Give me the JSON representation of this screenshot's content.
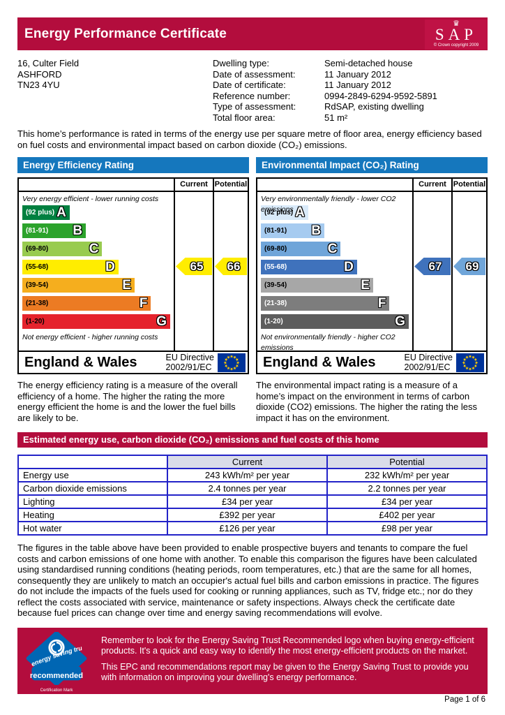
{
  "page": {
    "title": "Energy Performance Certificate",
    "page_number": "Page 1 of 6"
  },
  "sap": {
    "text": "SAP",
    "crown": "♛",
    "copyright": "© Crown copyright 2009"
  },
  "property": {
    "address_lines": [
      "16, Culter Field",
      "ASHFORD",
      "TN23 4YU"
    ],
    "details": [
      {
        "label": "Dwelling type:",
        "value": "Semi-detached house"
      },
      {
        "label": "Date of assessment:",
        "value": "11 January 2012"
      },
      {
        "label": "Date of certificate:",
        "value": "11 January 2012"
      },
      {
        "label": "Reference number:",
        "value": "0994-2849-6294-9592-5891"
      },
      {
        "label": "Type of assessment:",
        "value": "RdSAP, existing dwelling"
      },
      {
        "label": "Total floor area:",
        "value": "51 m²"
      }
    ]
  },
  "intro": {
    "text": "This home’s performance is rated in terms of the energy use per square metre of floor area, energy efficiency based on fuel costs and environmental impact based on carbon dioxide (CO₂) emissions."
  },
  "energy_chart": {
    "title": "Energy Efficiency Rating",
    "columns": {
      "current": "Current",
      "potential": "Potential"
    },
    "top_caption": "Very energy efficient - lower running costs",
    "bottom_caption": "Not energy efficient - higher running costs",
    "bands": [
      {
        "range": "(92 plus)",
        "letter": "A",
        "color": "#008040",
        "label_color": "#ffffff",
        "width_pct": 32
      },
      {
        "range": "(81-91)",
        "letter": "B",
        "color": "#2ca32c",
        "label_color": "#ffffff",
        "width_pct": 43
      },
      {
        "range": "(69-80)",
        "letter": "C",
        "color": "#98cb4f",
        "label_color": "#000000",
        "width_pct": 54
      },
      {
        "range": "(55-68)",
        "letter": "D",
        "color": "#ffed00",
        "label_color": "#000000",
        "width_pct": 65
      },
      {
        "range": "(39-54)",
        "letter": "E",
        "color": "#f5ae1e",
        "label_color": "#000000",
        "width_pct": 76
      },
      {
        "range": "(21-38)",
        "letter": "F",
        "color": "#ec7b23",
        "label_color": "#000000",
        "width_pct": 87
      },
      {
        "range": "(1-20)",
        "letter": "G",
        "color": "#e5232d",
        "label_color": "#000000",
        "width_pct": 100
      }
    ],
    "current": {
      "value": "65",
      "color": "#ffed00"
    },
    "potential": {
      "value": "66",
      "color": "#ffed00"
    },
    "footer": {
      "region": "England & Wales",
      "directive_line1": "EU Directive",
      "directive_line2": "2002/91/EC"
    },
    "description": "The energy efficiency rating is a measure of the overall efficiency of a home. The higher the rating the more energy efficient the home is and the lower the fuel bills are likely to be."
  },
  "co2_chart": {
    "title": "Environmental Impact (CO₂) Rating",
    "columns": {
      "current": "Current",
      "potential": "Potential"
    },
    "top_caption": "Very environmentally friendly - lower CO2 emissions",
    "bottom_caption": "Not environmentally friendly - higher CO2 emissions",
    "bands": [
      {
        "range": "(92 plus)",
        "letter": "A",
        "color": "#d9eaf9",
        "label_color": "#000000",
        "width_pct": 32
      },
      {
        "range": "(81-91)",
        "letter": "B",
        "color": "#a6cbf0",
        "label_color": "#000000",
        "width_pct": 43
      },
      {
        "range": "(69-80)",
        "letter": "C",
        "color": "#6fa5d9",
        "label_color": "#000000",
        "width_pct": 54
      },
      {
        "range": "(55-68)",
        "letter": "D",
        "color": "#3f72bc",
        "label_color": "#ffffff",
        "width_pct": 65
      },
      {
        "range": "(39-54)",
        "letter": "E",
        "color": "#a7a7a7",
        "label_color": "#000000",
        "width_pct": 76
      },
      {
        "range": "(21-38)",
        "letter": "F",
        "color": "#7d7d7d",
        "label_color": "#ffffff",
        "width_pct": 87
      },
      {
        "range": "(1-20)",
        "letter": "G",
        "color": "#5d5d5d",
        "label_color": "#ffffff",
        "width_pct": 100
      }
    ],
    "current": {
      "value": "67",
      "color": "#3f72bc"
    },
    "potential": {
      "value": "69",
      "color": "#6fa5d9"
    },
    "footer": {
      "region": "England & Wales",
      "directive_line1": "EU Directive",
      "directive_line2": "2002/91/EC"
    },
    "description": "The environmental impact rating is a measure of a home’s impact on the environment in terms of carbon dioxide (CO2) emissions. The higher the rating the less impact it has on the environment."
  },
  "estimates": {
    "title": "Estimated energy use, carbon dioxide (CO₂) emissions and fuel costs of this home",
    "columns": {
      "current": "Current",
      "potential": "Potential"
    },
    "rows": [
      {
        "label": "Energy use",
        "current": "243 kWh/m² per year",
        "potential": "232 kWh/m² per year"
      },
      {
        "label": "Carbon dioxide emissions",
        "current": "2.4 tonnes per year",
        "potential": "2.2 tonnes per year"
      },
      {
        "label": "Lighting",
        "current": "£34 per year",
        "potential": "£34 per year"
      },
      {
        "label": "Heating",
        "current": "£392 per year",
        "potential": "£402 per year"
      },
      {
        "label": "Hot water",
        "current": "£126 per year",
        "potential": "£98 per year"
      }
    ]
  },
  "figures_note": {
    "text": "The figures in the table above have been provided to enable prospective buyers and tenants to compare the fuel costs and carbon emissions of one home with another. To enable this comparison the figures have been calculated using standardised running conditions (heating periods, room temperatures, etc.) that are the same for all homes, consequently they are unlikely to match an occupier's actual fuel bills and carbon emissions in practice. The figures do not include the impacts of the fuels used for cooking or running appliances, such as TV, fridge etc.; nor do they reflect the costs associated with service, maintenance or safety inspections. Always check the certificate date because fuel prices can change over time and energy saving recommendations will evolve."
  },
  "est_banner": {
    "logo": {
      "arc_text": "energy saving trust",
      "recommended": "recommended",
      "certification": "Certification Mark"
    },
    "para1": "Remember to look for the Energy Saving Trust Recommended logo when buying energy-efficient products. It's a quick and easy way to identify the most energy-efficient products on the market.",
    "para2": "This EPC and recommendations report may be given to the Energy Saving Trust to provide you with information on improving your dwelling's energy performance."
  },
  "colors": {
    "crimson": "#b30d3d",
    "panel_blue": "#1577bd",
    "table_border_blue": "#2323c8",
    "eu_flag_blue": "#003399",
    "eu_star_yellow": "#ffcc00",
    "est_logo_blue": "#0066b3"
  }
}
